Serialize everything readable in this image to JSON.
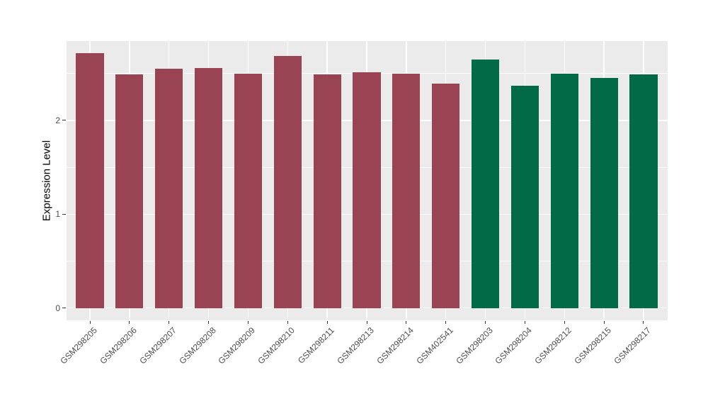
{
  "chart_data": {
    "type": "bar",
    "title": "",
    "xlabel": "",
    "ylabel": "Expression Level",
    "categories": [
      "GSM298205",
      "GSM298206",
      "GSM298207",
      "GSM298208",
      "GSM298209",
      "GSM298210",
      "GSM298211",
      "GSM298213",
      "GSM298214",
      "GSM402541",
      "GSM298203",
      "GSM298204",
      "GSM298212",
      "GSM298215",
      "GSM298217"
    ],
    "values": [
      2.72,
      2.49,
      2.55,
      2.56,
      2.5,
      2.69,
      2.49,
      2.51,
      2.5,
      2.39,
      2.65,
      2.37,
      2.5,
      2.45,
      2.49
    ],
    "bar_groups": [
      1,
      1,
      1,
      1,
      1,
      1,
      1,
      1,
      1,
      1,
      2,
      2,
      2,
      2,
      2
    ],
    "group_colors": {
      "1": "#9A4352",
      "2": "#006B46"
    },
    "yticks": [
      0,
      1,
      2
    ],
    "yminor": [
      0.5,
      1.5,
      2.5
    ],
    "ylim": [
      -0.131,
      2.845
    ],
    "grid": "on",
    "legend": "none",
    "x_tick_rotation_deg": 45,
    "colors": {
      "panel_bg": "#EBEBEB",
      "grid": "#FFFFFF",
      "axis_text": "#4D4D4D",
      "axis_title": "#000000",
      "tick_mark": "#333333",
      "figure_bg": "#FFFFFF"
    }
  }
}
